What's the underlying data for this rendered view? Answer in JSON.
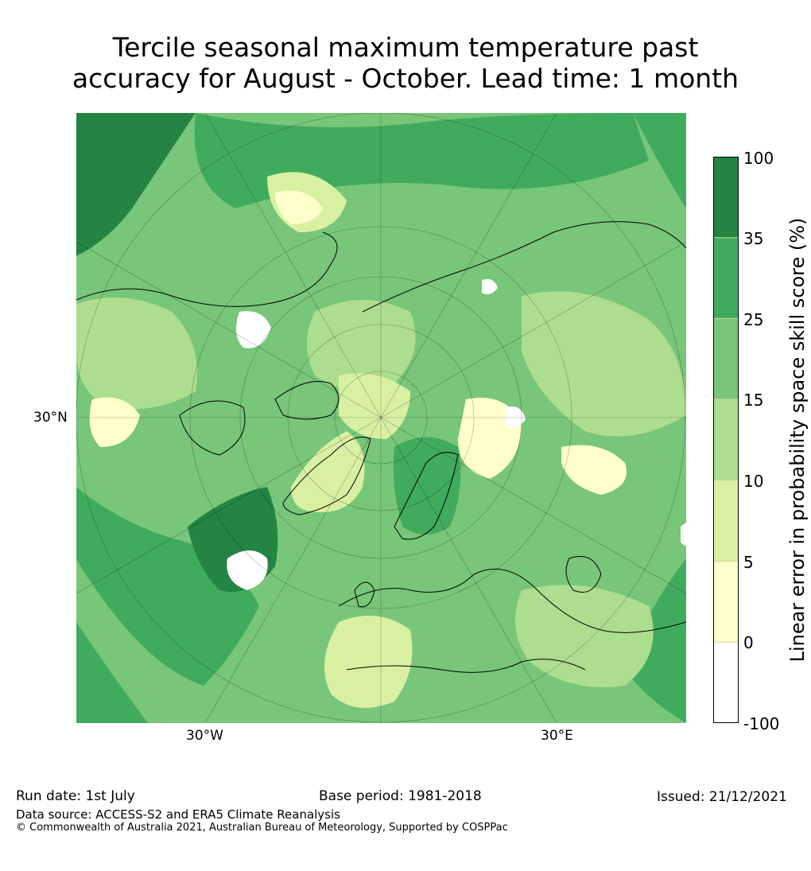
{
  "title": {
    "line1": "Tercile seasonal maximum temperature past",
    "line2": "accuracy for August - October. Lead time: 1 month"
  },
  "map": {
    "projection": "north-polar-stereographic",
    "lat_label": "30°N",
    "lon_labels": {
      "west": "30°W",
      "east": "30°E"
    },
    "dominant_colors": [
      "#ffffcc",
      "#d9f0a3",
      "#addd8e",
      "#78c679",
      "#41ab5d",
      "#238443"
    ]
  },
  "colorbar": {
    "label": "Linear error in probability space skill score (%)",
    "ticks": [
      "100",
      "35",
      "25",
      "15",
      "10",
      "5",
      "0",
      "-100"
    ],
    "bins": [
      {
        "range": "35 to 100",
        "color": "#238443"
      },
      {
        "range": "25 to 35",
        "color": "#41ab5d"
      },
      {
        "range": "15 to 25",
        "color": "#78c679"
      },
      {
        "range": "10 to 15",
        "color": "#addd8e"
      },
      {
        "range": "5 to 10",
        "color": "#d9f0a3"
      },
      {
        "range": "0 to 5",
        "color": "#ffffcc"
      },
      {
        "range": "-100 to 0",
        "color": "#ffffff"
      }
    ]
  },
  "footer": {
    "run_date": "Run date: 1st July",
    "base_period": "Base period: 1981-2018",
    "issued": "Issued: 21/12/2021",
    "data_source": "Data source: ACCESS-S2 and ERA5 Climate Reanalysis",
    "copyright": "© Commonwealth of Australia 2021, Australian Bureau of Meteorology, Supported by COSPPac"
  }
}
